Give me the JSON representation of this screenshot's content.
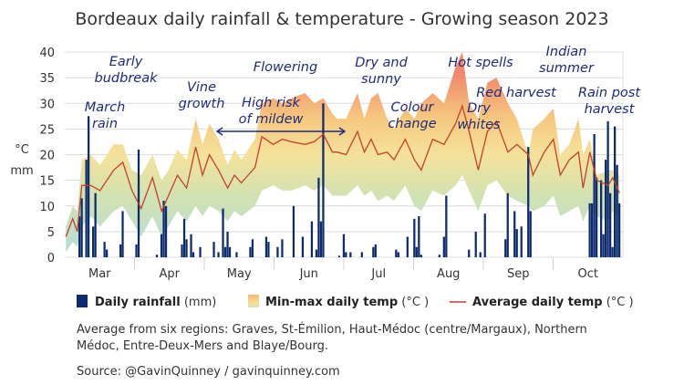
{
  "chart_data": {
    "type": "bar+area+line",
    "title": "Bordeaux daily rainfall & temperature - Growing season 2023",
    "year": 2023,
    "ylabel": [
      "°C",
      "mm"
    ],
    "ylim": [
      0,
      40
    ],
    "yticks": [
      0,
      5,
      10,
      15,
      20,
      25,
      30,
      35,
      40
    ],
    "xlim": [
      "2023-03-01",
      "2023-10-31"
    ],
    "xticks": [
      "Mar",
      "Apr",
      "May",
      "Jun",
      "Jul",
      "Aug",
      "Sep",
      "Oct"
    ],
    "grid": true,
    "colors": {
      "rainfall": "#0d2b6e",
      "avg_temp": "#c4402c",
      "temp_hot": "#f0866c",
      "temp_warm": "#f6c77f",
      "temp_mild": "#f5e29a",
      "temp_cool": "#cfe2b4",
      "temp_cold": "#b6dcd8",
      "annotation": "#1f2b7b"
    },
    "legend": {
      "placement": "bottom",
      "items": [
        {
          "bold": "Daily rainfall",
          "unit": " (mm)"
        },
        {
          "bold": "Min-max daily temp",
          "unit": " (°C )"
        },
        {
          "bold": "Average daily temp",
          "unit": " (°C )"
        }
      ]
    },
    "temperature": {
      "dates": [
        "03-01",
        "03-04",
        "03-06",
        "03-08",
        "03-12",
        "03-16",
        "03-22",
        "03-26",
        "03-30",
        "04-03",
        "04-08",
        "04-12",
        "04-15",
        "04-19",
        "04-23",
        "04-27",
        "04-30",
        "05-03",
        "05-07",
        "05-11",
        "05-14",
        "05-17",
        "05-20",
        "05-23",
        "05-26",
        "05-31",
        "06-04",
        "06-08",
        "06-14",
        "06-18",
        "06-22",
        "06-26",
        "06-28",
        "07-02",
        "07-07",
        "07-10",
        "07-13",
        "07-16",
        "07-20",
        "07-23",
        "07-28",
        "08-01",
        "08-04",
        "08-09",
        "08-14",
        "08-19",
        "08-22",
        "08-25",
        "08-29",
        "09-02",
        "09-06",
        "09-11",
        "09-15",
        "09-20",
        "09-22",
        "09-27",
        "10-01",
        "10-04",
        "10-08",
        "10-12",
        "10-14",
        "10-17",
        "10-20",
        "10-25",
        "10-27",
        "10-30"
      ],
      "avg": [
        4,
        7.5,
        5,
        14,
        14,
        13,
        17,
        18.5,
        13,
        9.5,
        15.5,
        9,
        12,
        16,
        13.5,
        21.5,
        16,
        20,
        17,
        13.5,
        16,
        14.5,
        16,
        17.5,
        23.5,
        22,
        23,
        22.5,
        22,
        22.5,
        24,
        20.5,
        20.5,
        20,
        24.5,
        20.5,
        23,
        20,
        20.5,
        19,
        23,
        19,
        17,
        23,
        22,
        26,
        29.5,
        24.5,
        17,
        24.5,
        26.5,
        20.5,
        22,
        20,
        16,
        20.5,
        23,
        16,
        19,
        20.5,
        13.5,
        20.5,
        15,
        14,
        15.5,
        12.5
      ],
      "max": [
        6,
        10,
        9,
        19,
        20,
        18,
        22,
        22,
        17,
        16,
        20,
        15,
        17,
        21,
        19,
        27,
        22,
        26,
        23,
        18,
        21,
        19,
        21,
        23,
        30,
        31,
        30,
        31,
        32,
        30,
        31,
        28,
        27,
        27,
        32,
        27,
        31,
        32,
        27,
        25,
        29,
        27,
        30,
        32,
        30,
        37,
        40,
        30,
        27,
        34,
        35,
        30,
        27,
        20,
        25,
        27,
        29,
        20,
        22,
        27,
        20,
        23,
        16,
        17,
        17,
        16
      ],
      "min": [
        1,
        3,
        2,
        6,
        8,
        6,
        9,
        10,
        7,
        4,
        8,
        4,
        6,
        9,
        7,
        10,
        8,
        10,
        9,
        7,
        9,
        8,
        9,
        10,
        13,
        14,
        13,
        13,
        14,
        13,
        14,
        12,
        12,
        12,
        14,
        12,
        13,
        11,
        12,
        11,
        14,
        10,
        9,
        13,
        12,
        14,
        16,
        13,
        9,
        14,
        15,
        12,
        11,
        10,
        9,
        10,
        12,
        8,
        9,
        10,
        7,
        10,
        8,
        7,
        9,
        8
      ]
    },
    "rainfall": {
      "dates": [
        "03-07",
        "03-08",
        "03-10",
        "03-11",
        "03-13",
        "03-14",
        "03-18",
        "03-19",
        "03-25",
        "03-26",
        "04-01",
        "04-02",
        "04-10",
        "04-12",
        "04-13",
        "04-14",
        "04-21",
        "04-22",
        "04-23",
        "04-25",
        "04-26",
        "04-29",
        "05-05",
        "05-07",
        "05-09",
        "05-10",
        "05-11",
        "05-12",
        "05-15",
        "05-21",
        "05-22",
        "05-28",
        "05-29",
        "06-02",
        "06-04",
        "06-09",
        "06-13",
        "06-17",
        "06-19",
        "06-20",
        "06-21",
        "06-22",
        "06-29",
        "07-01",
        "07-02",
        "07-04",
        "07-09",
        "07-14",
        "07-15",
        "07-24",
        "07-25",
        "07-29",
        "08-01",
        "08-02",
        "08-03",
        "08-04",
        "08-12",
        "08-14",
        "08-15",
        "08-25",
        "08-28",
        "08-30",
        "09-01",
        "09-10",
        "09-11",
        "09-14",
        "09-15",
        "09-17",
        "09-20",
        "09-21",
        "10-17",
        "10-18",
        "10-19",
        "10-20",
        "10-22",
        "10-23",
        "10-24",
        "10-25",
        "10-26",
        "10-27",
        "10-28",
        "10-29",
        "10-30"
      ],
      "mm": [
        8,
        11.5,
        19,
        27.5,
        6,
        12.5,
        3,
        1.5,
        2.5,
        9,
        2.5,
        21,
        0.5,
        4.5,
        11,
        10,
        2.5,
        7.5,
        3.5,
        4.5,
        1,
        2,
        3,
        1,
        9.5,
        2,
        5,
        2,
        1,
        2,
        3.5,
        4,
        3,
        2,
        3.5,
        10,
        4,
        7,
        1.5,
        15.5,
        7,
        30,
        0.3,
        4.5,
        1,
        1,
        1,
        2,
        2.5,
        1.5,
        1,
        4,
        7.5,
        2,
        8,
        0.5,
        0.5,
        4,
        12,
        1.5,
        5,
        1,
        8.5,
        3.5,
        12.5,
        9,
        5.5,
        6,
        21.5,
        9,
        10.5,
        10.5,
        24,
        15.5,
        15,
        4.5,
        19,
        26.5,
        12.5,
        2,
        25.5,
        18,
        10.5
      ]
    },
    "annotations": [
      {
        "lines": [
          "Early",
          "budbreak"
        ]
      },
      {
        "lines": [
          "March",
          "rain"
        ]
      },
      {
        "lines": [
          "Vine",
          "growth"
        ]
      },
      {
        "lines": [
          "High risk",
          "of mildew"
        ]
      },
      {
        "lines": [
          "Flowering"
        ]
      },
      {
        "lines": [
          "Dry and",
          "sunny"
        ]
      },
      {
        "lines": [
          "Colour",
          "change"
        ]
      },
      {
        "lines": [
          "Hot spells"
        ]
      },
      {
        "lines": [
          "Dry",
          "whites"
        ]
      },
      {
        "lines": [
          "Indian",
          "summer"
        ]
      },
      {
        "lines": [
          "Red harvest"
        ]
      },
      {
        "lines": [
          "Rain post",
          "harvest"
        ]
      }
    ]
  },
  "notes": {
    "line1": "Average from six regions: Graves, St-Émilion, Haut-Médoc (centre/Margaux), Northern",
    "line2": "Médoc, Entre-Deux-Mers and Blaye/Bourg.",
    "source": "Source: @GavinQuinney / gavinquinney.com"
  }
}
